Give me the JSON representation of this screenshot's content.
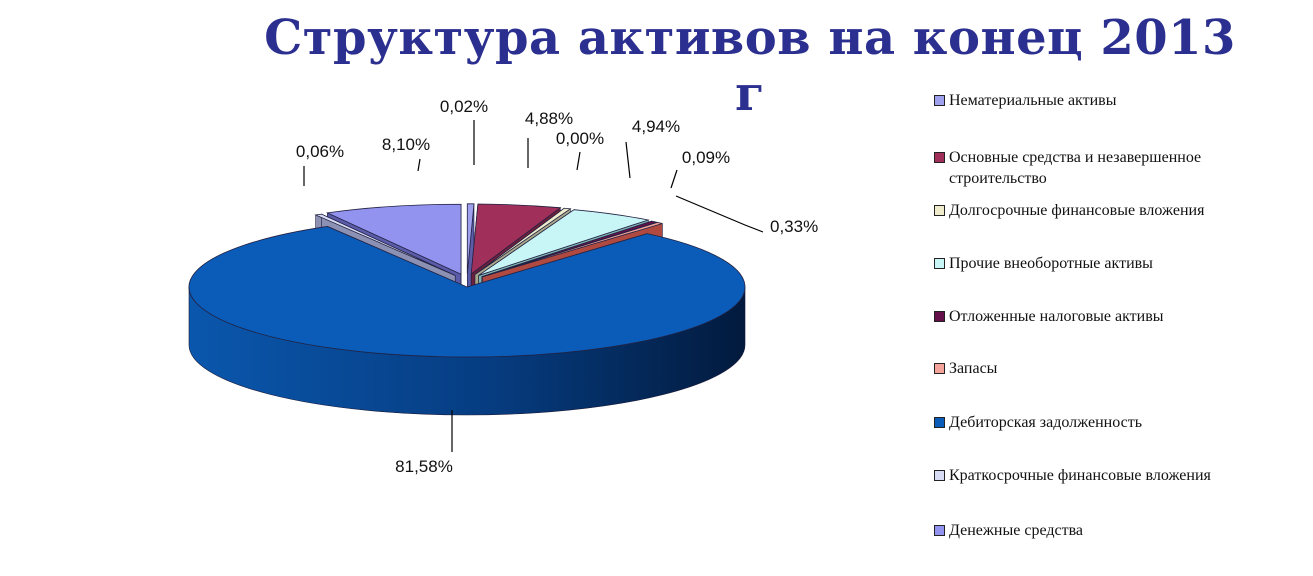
{
  "chart_data": {
    "type": "pie",
    "title": "Структура активов на конец 2013 г",
    "style": "3d-exploded",
    "legend_position": "right",
    "categories": [
      "Нематериальные активы",
      "Основные средства  и незавершенное строительство",
      "Долгосрочные финансовые вложения",
      "Прочие внеоборотные активы",
      "Отложенные налоговые активы",
      "Запасы",
      "Дебиторская задолженность",
      "Краткосрочные финансовые вложения",
      "Денежные средства"
    ],
    "values": [
      0.02,
      4.88,
      0.0,
      4.94,
      0.09,
      0.33,
      81.58,
      0.06,
      8.1
    ],
    "value_labels": [
      "0,02%",
      "4,88%",
      "0,00%",
      "4,94%",
      "0,09%",
      "0,33%",
      "81,58%",
      "0,06%",
      "8,10%"
    ],
    "colors": [
      "#9fa0ee",
      "#a0305a",
      "#efeccc",
      "#c8f6f6",
      "#65104a",
      "#f4a39a",
      "#0a5cb8",
      "#d8dcf4",
      "#9293ee"
    ],
    "side_colors": [
      "#5c5ca8",
      "#6e1f3c",
      "#a9a78a",
      "#7fb1b1",
      "#3d092c",
      "#b04a40",
      "#06306a",
      "#8c90b2",
      "#5b5ca9"
    ]
  }
}
